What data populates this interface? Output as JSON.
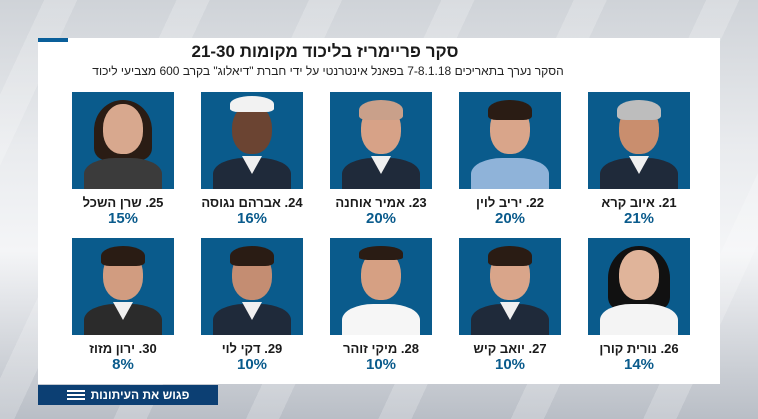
{
  "title": "סקר פריימריז בליכוד מקומות 21-30",
  "subtitle": "הסקר נערך בתאריכים 7-8.1.18 בפאנל אינטרנטי על ידי חברת \"דיאלוג\" בקרב 600 מצביעי ליכוד",
  "candidates": [
    {
      "name": "21. איוב קרא",
      "pct": "21%"
    },
    {
      "name": "22. יריב לוין",
      "pct": "20%"
    },
    {
      "name": "23. אמיר אוחנה",
      "pct": "20%"
    },
    {
      "name": "24. אברהם נגוסה",
      "pct": "16%"
    },
    {
      "name": "25. שרן השכל",
      "pct": "15%"
    },
    {
      "name": "26. נורית קורן",
      "pct": "14%"
    },
    {
      "name": "27. יואב קיש",
      "pct": "10%"
    },
    {
      "name": "28. מיקי זוהר",
      "pct": "10%"
    },
    {
      "name": "29. דקי לוי",
      "pct": "10%"
    },
    {
      "name": "30. ירון מזוז",
      "pct": "8%"
    }
  ],
  "ticker": {
    "label": "פגוש את העיתונות"
  },
  "colors": {
    "photo_bg": "#0a5b8c",
    "ticker_bg": "#0c3f73",
    "accent": "#0a5f9a"
  }
}
